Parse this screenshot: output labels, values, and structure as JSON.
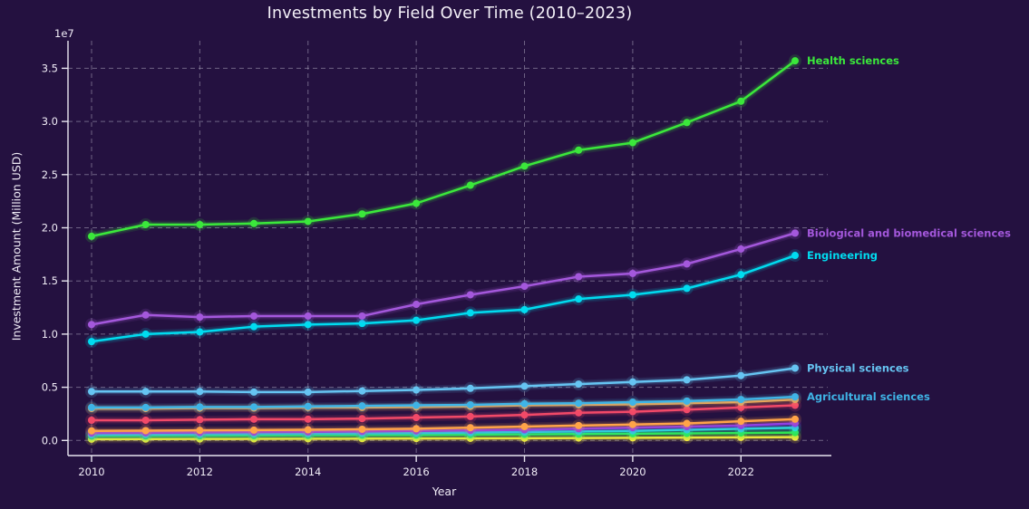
{
  "title": "Investments by Field Over Time (2010–2023)",
  "axes": {
    "x_label": "Year",
    "y_label": "Investment Amount (Million USD)",
    "offset_text": "1e7",
    "x_tick_labels": [
      "2010",
      "2012",
      "2014",
      "2016",
      "2018",
      "2020",
      "2022"
    ],
    "x_tick_values": [
      2010,
      2012,
      2014,
      2016,
      2018,
      2020,
      2022
    ],
    "y_tick_labels": [
      "0.0",
      "0.5",
      "1.0",
      "1.5",
      "2.0",
      "2.5",
      "3.0",
      "3.5"
    ],
    "y_tick_values": [
      0,
      5000000,
      10000000,
      15000000,
      20000000,
      25000000,
      30000000,
      35000000
    ]
  },
  "style_colors": {
    "background": "#241140",
    "grid": "#b9b5c9",
    "spine": "#e8e5f0",
    "tick_text": "#f0ecf6",
    "title_text": "#f4f1f8"
  },
  "chart_data": {
    "type": "line",
    "title": "Investments by Field Over Time (2010–2023)",
    "xlabel": "Year",
    "ylabel": "Investment Amount (Million USD)",
    "x": [
      2010,
      2011,
      2012,
      2013,
      2014,
      2015,
      2016,
      2017,
      2018,
      2019,
      2020,
      2021,
      2022,
      2023
    ],
    "xlim": [
      2009.55,
      2023.67
    ],
    "ylim": [
      -1400000,
      37600000
    ],
    "grid": true,
    "legend_position": "end-of-line-annotations",
    "series": [
      {
        "label": "Health sciences",
        "color": "#3be83b",
        "values": [
          19200000,
          20300000,
          20300000,
          20400000,
          20600000,
          21300000,
          22300000,
          24000000,
          25800000,
          27300000,
          28000000,
          29900000,
          31900000,
          35700000
        ]
      },
      {
        "label": "Biological and biomedical sciences",
        "color": "#a458dc",
        "values": [
          10900000,
          11800000,
          11600000,
          11700000,
          11700000,
          11700000,
          12800000,
          13700000,
          14500000,
          15400000,
          15700000,
          16600000,
          18000000,
          19500000
        ]
      },
      {
        "label": "Engineering",
        "color": "#00dcf0",
        "values": [
          9300000,
          10000000,
          10200000,
          10700000,
          10900000,
          11000000,
          11300000,
          12000000,
          12300000,
          13300000,
          13700000,
          14300000,
          15600000,
          17400000
        ]
      },
      {
        "label": "Physical sciences",
        "color": "#66c4f2",
        "values": [
          4600000,
          4600000,
          4600000,
          4550000,
          4550000,
          4650000,
          4750000,
          4900000,
          5100000,
          5300000,
          5500000,
          5700000,
          6100000,
          6800000
        ]
      },
      {
        "label": "Agricultural sciences",
        "color": "#3fb4e6",
        "values": [
          3100000,
          3100000,
          3150000,
          3150000,
          3200000,
          3250000,
          3300000,
          3350000,
          3450000,
          3500000,
          3600000,
          3700000,
          3850000,
          4100000
        ]
      },
      {
        "label": "",
        "color": "#ffa448",
        "values": [
          3000000,
          3000000,
          3050000,
          3050000,
          3100000,
          3100000,
          3150000,
          3200000,
          3300000,
          3350000,
          3400000,
          3500000,
          3600000,
          3850000
        ]
      },
      {
        "label": "",
        "color": "#f24968",
        "values": [
          1900000,
          1900000,
          1950000,
          2000000,
          2000000,
          2050000,
          2150000,
          2250000,
          2400000,
          2600000,
          2700000,
          2900000,
          3100000,
          3300000
        ]
      },
      {
        "label": "",
        "color": "#ffa448",
        "values": [
          900000,
          920000,
          950000,
          970000,
          1000000,
          1050000,
          1100000,
          1200000,
          1300000,
          1400000,
          1500000,
          1600000,
          1800000,
          2000000
        ]
      },
      {
        "label": "",
        "color": "#8c3bea",
        "values": [
          700000,
          720000,
          750000,
          780000,
          800000,
          850000,
          900000,
          950000,
          1000000,
          1100000,
          1200000,
          1300000,
          1400000,
          1600000
        ]
      },
      {
        "label": "",
        "color": "#25e0d8",
        "values": [
          550000,
          570000,
          600000,
          620000,
          650000,
          670000,
          700000,
          750000,
          800000,
          850000,
          900000,
          1000000,
          1100000,
          1200000
        ]
      },
      {
        "label": "",
        "color": "#30e650",
        "values": [
          420000,
          430000,
          440000,
          460000,
          480000,
          500000,
          520000,
          550000,
          580000,
          600000,
          630000,
          660000,
          700000,
          740000
        ]
      },
      {
        "label": "",
        "color": "#f2e73e",
        "values": [
          120000,
          130000,
          140000,
          150000,
          160000,
          170000,
          180000,
          200000,
          210000,
          230000,
          250000,
          270000,
          290000,
          310000
        ]
      }
    ]
  }
}
